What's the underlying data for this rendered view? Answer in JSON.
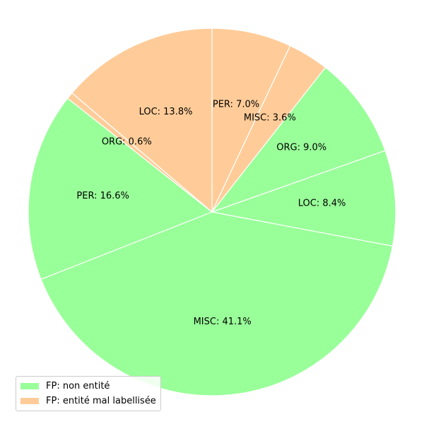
{
  "chart_data": {
    "type": "pie",
    "title": "",
    "start_angle_deg": 90,
    "direction": "clockwise",
    "wedge_edge_color": "#ffffff",
    "slices": [
      {
        "label": "PER",
        "value": 7.0,
        "group": "FP: entité mal labellisée",
        "color": "#ffcc99"
      },
      {
        "label": "MISC",
        "value": 3.6,
        "group": "FP: entité mal labellisée",
        "color": "#ffcc99"
      },
      {
        "label": "ORG",
        "value": 9.0,
        "group": "FP: non entité",
        "color": "#99ff99"
      },
      {
        "label": "LOC",
        "value": 8.4,
        "group": "FP: non entité",
        "color": "#99ff99"
      },
      {
        "label": "MISC",
        "value": 41.1,
        "group": "FP: non entité",
        "color": "#99ff99"
      },
      {
        "label": "PER",
        "value": 16.6,
        "group": "FP: non entité",
        "color": "#99ff99"
      },
      {
        "label": "ORG",
        "value": 0.6,
        "group": "FP: entité mal labellisée",
        "color": "#ffcc99"
      },
      {
        "label": "LOC",
        "value": 13.8,
        "group": "FP: entité mal labellisée",
        "color": "#ffcc99"
      }
    ],
    "legend": {
      "position": "lower-left",
      "entries": [
        {
          "name": "FP: non entité",
          "color": "#99ff99"
        },
        {
          "name": "FP: entité mal labellisée",
          "color": "#ffcc99"
        }
      ]
    }
  }
}
